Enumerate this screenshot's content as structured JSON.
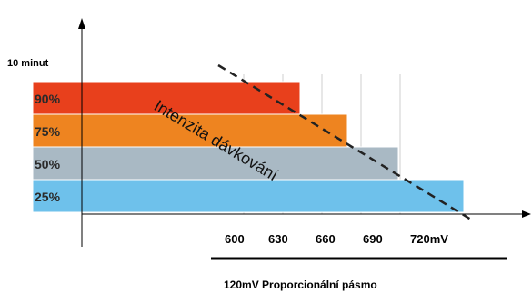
{
  "y_axis_label": "10 minut",
  "bars": [
    {
      "label": "90%",
      "end_mV": 630,
      "color": "#e8401c"
    },
    {
      "label": "75%",
      "end_mV": 660,
      "color": "#ee8420"
    },
    {
      "label": "50%",
      "end_mV": 690,
      "color": "#a9b9c4"
    },
    {
      "label": "25%",
      "end_mV": 720,
      "color": "#6ec1eb"
    }
  ],
  "x_ticks": [
    {
      "value": 600,
      "label": "600"
    },
    {
      "value": 630,
      "label": "630"
    },
    {
      "value": 660,
      "label": "660"
    },
    {
      "value": 690,
      "label": "690"
    },
    {
      "value": 720,
      "label": "720mV"
    }
  ],
  "diagonal_label": "Intenzita dávkování",
  "band_label": "120mV  Proporcionální pásmo",
  "colors": {
    "axis": "#000000",
    "gridline": "#cfcfcf",
    "dashed_line": "#222222"
  }
}
